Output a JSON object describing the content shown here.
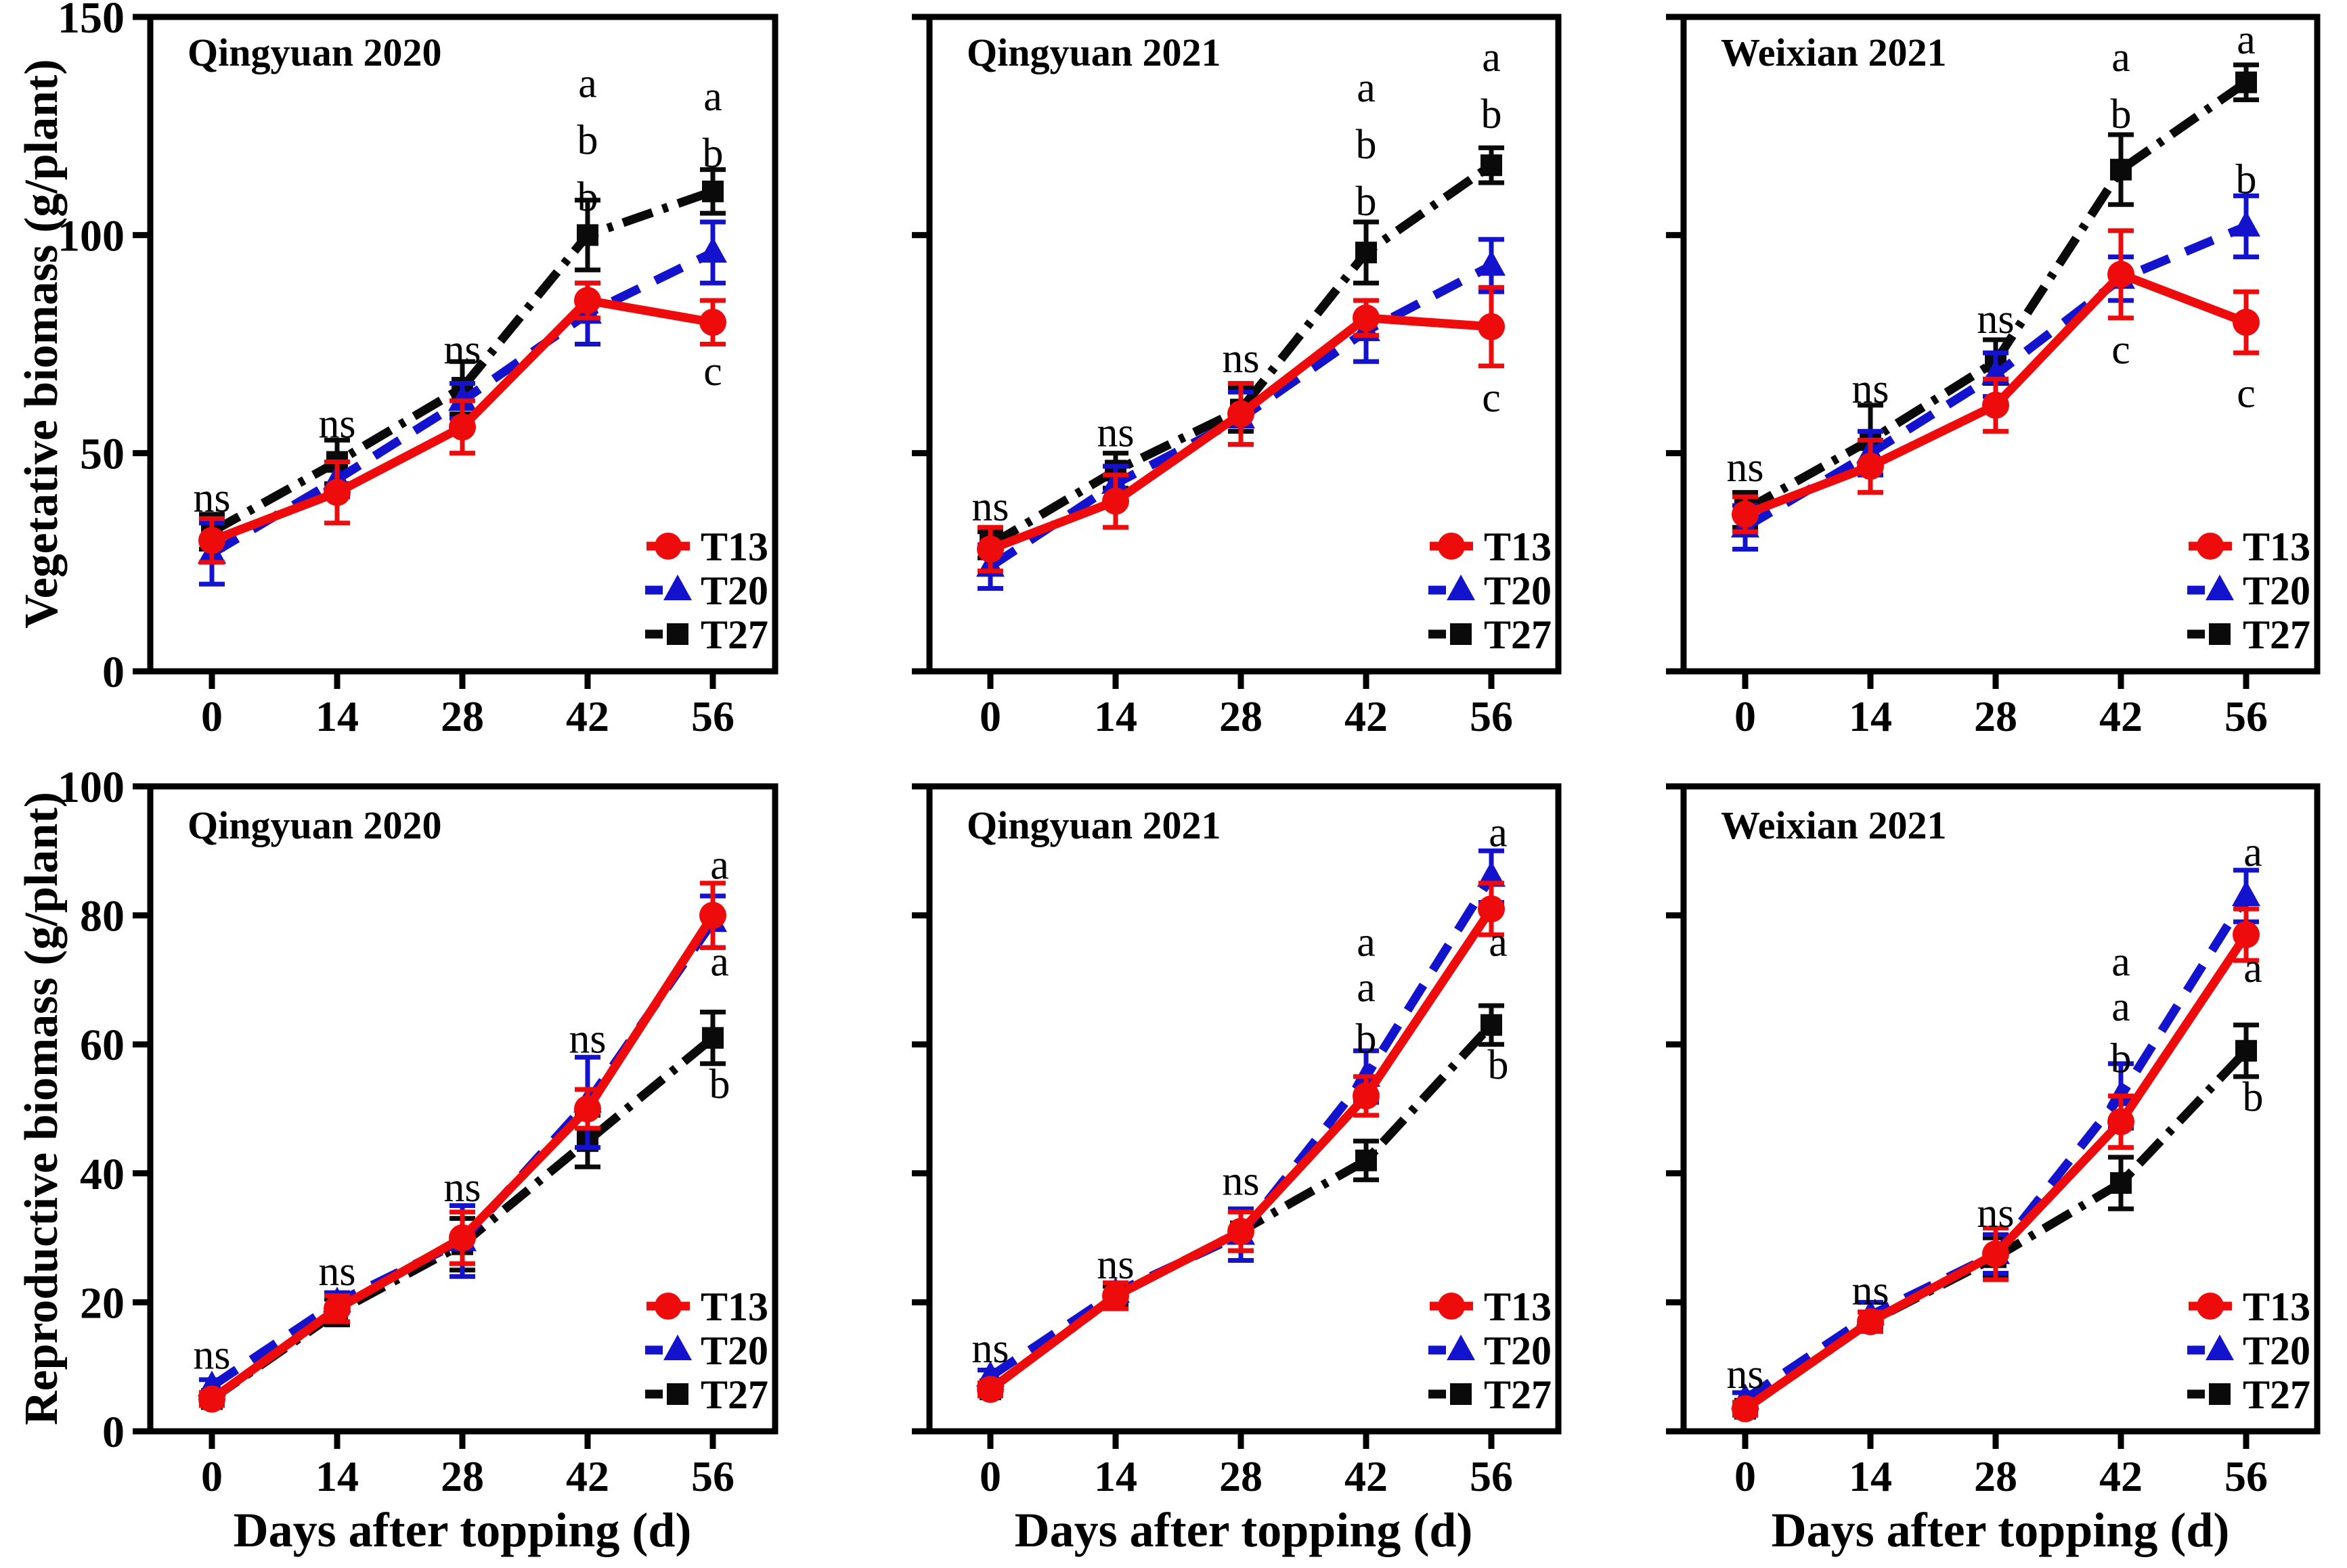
{
  "figure": {
    "xlabel": "Days after topping (d)",
    "x_values": [
      0,
      14,
      28,
      42,
      56
    ],
    "x_tick_labels": [
      "0",
      "14",
      "28",
      "42",
      "56"
    ],
    "series_colors": {
      "T13": "#ee0b0b",
      "T20": "#1313cd",
      "T27": "#0a0a0a"
    },
    "series_markers": {
      "T13": "circle",
      "T20": "triangle",
      "T27": "square"
    },
    "series_linestyles": {
      "T13": "solid",
      "T20": "dashed",
      "T27": "dashdot"
    },
    "legend_labels": [
      "T13",
      "T20",
      "T27"
    ],
    "legend_position": "lower-right"
  },
  "chart_data": [
    {
      "type": "line",
      "title": "Qingyuan 2020",
      "ylabel": "Vegetative biomass (g/plant)",
      "ylim": [
        0,
        150
      ],
      "yticks": [
        0,
        50,
        100,
        150
      ],
      "x": [
        0,
        14,
        28,
        42,
        56
      ],
      "series": [
        {
          "name": "T13",
          "values": [
            30,
            41,
            56,
            85,
            80
          ],
          "errors": [
            5,
            7,
            6,
            4,
            5
          ]
        },
        {
          "name": "T20",
          "values": [
            27,
            44,
            62,
            82,
            96
          ],
          "errors": [
            7,
            4,
            4,
            7,
            7
          ]
        },
        {
          "name": "T27",
          "values": [
            32,
            48,
            65,
            100,
            110
          ],
          "errors": [
            4,
            5,
            6,
            8,
            5
          ]
        }
      ],
      "annotations": [
        {
          "xi": 0,
          "y": 40,
          "text": "ns"
        },
        {
          "xi": 1,
          "y": 57,
          "text": "ns"
        },
        {
          "xi": 2,
          "y": 74,
          "text": "ns"
        },
        {
          "xi": 3,
          "y": 135,
          "text": "a"
        },
        {
          "xi": 3,
          "y": 122,
          "text": "b"
        },
        {
          "xi": 3,
          "y": 109,
          "text": "b"
        },
        {
          "xi": 4,
          "y": 132,
          "text": "a"
        },
        {
          "xi": 4,
          "y": 119,
          "text": "b"
        },
        {
          "xi": 4,
          "y": 69,
          "text": "c"
        }
      ]
    },
    {
      "type": "line",
      "title": "Qingyuan 2021",
      "ylabel": "Vegetative biomass (g/plant)",
      "ylim": [
        0,
        150
      ],
      "yticks": [
        0,
        50,
        100,
        150
      ],
      "x": [
        0,
        14,
        28,
        42,
        56
      ],
      "series": [
        {
          "name": "T13",
          "values": [
            28,
            39,
            59,
            81,
            79
          ],
          "errors": [
            5,
            6,
            7,
            4,
            9
          ]
        },
        {
          "name": "T20",
          "values": [
            24,
            43,
            58,
            78,
            93
          ],
          "errors": [
            5,
            4,
            6,
            7,
            6
          ]
        },
        {
          "name": "T27",
          "values": [
            29,
            46,
            60,
            96,
            116
          ],
          "errors": [
            3,
            4,
            5,
            7,
            4
          ]
        }
      ],
      "annotations": [
        {
          "xi": 0,
          "y": 38,
          "text": "ns"
        },
        {
          "xi": 1,
          "y": 55,
          "text": "ns"
        },
        {
          "xi": 2,
          "y": 72,
          "text": "ns"
        },
        {
          "xi": 3,
          "y": 134,
          "text": "a"
        },
        {
          "xi": 3,
          "y": 121,
          "text": "b"
        },
        {
          "xi": 3,
          "y": 108,
          "text": "b"
        },
        {
          "xi": 4,
          "y": 141,
          "text": "a"
        },
        {
          "xi": 4,
          "y": 128,
          "text": "b"
        },
        {
          "xi": 4,
          "y": 63,
          "text": "c"
        }
      ]
    },
    {
      "type": "line",
      "title": "Weixian 2021",
      "ylabel": "Vegetative biomass (g/plant)",
      "ylim": [
        0,
        150
      ],
      "yticks": [
        0,
        50,
        100,
        150
      ],
      "x": [
        0,
        14,
        28,
        42,
        56
      ],
      "series": [
        {
          "name": "T13",
          "values": [
            36,
            47,
            61,
            91,
            80
          ],
          "errors": [
            4,
            6,
            6,
            10,
            7
          ]
        },
        {
          "name": "T20",
          "values": [
            33,
            50,
            68,
            90,
            102
          ],
          "errors": [
            5,
            5,
            5,
            5,
            7
          ]
        },
        {
          "name": "T27",
          "values": [
            37,
            53,
            71,
            115,
            135
          ],
          "errors": [
            4,
            8,
            5,
            8,
            4
          ]
        }
      ],
      "annotations": [
        {
          "xi": 0,
          "y": 47,
          "text": "ns"
        },
        {
          "xi": 1,
          "y": 65,
          "text": "ns"
        },
        {
          "xi": 2,
          "y": 81,
          "text": "ns"
        },
        {
          "xi": 3,
          "y": 141,
          "text": "a"
        },
        {
          "xi": 3,
          "y": 128,
          "text": "b"
        },
        {
          "xi": 3,
          "y": 74,
          "text": "c"
        },
        {
          "xi": 4,
          "y": 145,
          "text": "a"
        },
        {
          "xi": 4,
          "y": 113,
          "text": "b"
        },
        {
          "xi": 4,
          "y": 64,
          "text": "c"
        }
      ]
    },
    {
      "type": "line",
      "title": "Qingyuan 2020",
      "ylabel": "Reproductive biomass (g/plant)",
      "ylim": [
        0,
        100
      ],
      "yticks": [
        0,
        20,
        40,
        60,
        80,
        100
      ],
      "x": [
        0,
        14,
        28,
        42,
        56
      ],
      "series": [
        {
          "name": "T13",
          "values": [
            5,
            19,
            30,
            50,
            80
          ],
          "errors": [
            1,
            2,
            4,
            3,
            5
          ]
        },
        {
          "name": "T20",
          "values": [
            7,
            20,
            29.5,
            51,
            79
          ],
          "errors": [
            1,
            1.5,
            5.5,
            7,
            4
          ]
        },
        {
          "name": "T27",
          "values": [
            5,
            18.5,
            29,
            45,
            61
          ],
          "errors": [
            1,
            2,
            4,
            4,
            4
          ]
        }
      ],
      "annotations": [
        {
          "xi": 0,
          "y": 12,
          "text": "ns"
        },
        {
          "xi": 1,
          "y": 25,
          "text": "ns"
        },
        {
          "xi": 2,
          "y": 38,
          "text": "ns"
        },
        {
          "xi": 3,
          "y": 61,
          "text": "ns"
        },
        {
          "xi": 4,
          "y": 88,
          "text": "a",
          "dx": 10
        },
        {
          "xi": 4,
          "y": 73,
          "text": "a",
          "dx": 10
        },
        {
          "xi": 4,
          "y": 54,
          "text": "b",
          "dx": 10
        }
      ]
    },
    {
      "type": "line",
      "title": "Qingyuan 2021",
      "ylabel": "Reproductive biomass (g/plant)",
      "ylim": [
        0,
        100
      ],
      "yticks": [
        0,
        20,
        40,
        60,
        80,
        100
      ],
      "x": [
        0,
        14,
        28,
        42,
        56
      ],
      "series": [
        {
          "name": "T13",
          "values": [
            6.5,
            21,
            31,
            52,
            81
          ],
          "errors": [
            1,
            2,
            3,
            3,
            4
          ]
        },
        {
          "name": "T20",
          "values": [
            8.5,
            21.5,
            30.5,
            55,
            86
          ],
          "errors": [
            1,
            1.5,
            4,
            4,
            4
          ]
        },
        {
          "name": "T27",
          "values": [
            6.5,
            21,
            31,
            42,
            63
          ],
          "errors": [
            1,
            1.5,
            3,
            3,
            3
          ]
        }
      ],
      "annotations": [
        {
          "xi": 0,
          "y": 13,
          "text": "ns"
        },
        {
          "xi": 1,
          "y": 26,
          "text": "ns"
        },
        {
          "xi": 2,
          "y": 39,
          "text": "ns"
        },
        {
          "xi": 3,
          "y": 76,
          "text": "a"
        },
        {
          "xi": 3,
          "y": 69,
          "text": "a"
        },
        {
          "xi": 3,
          "y": 61,
          "text": "b"
        },
        {
          "xi": 4,
          "y": 93,
          "text": "a",
          "dx": 10
        },
        {
          "xi": 4,
          "y": 76,
          "text": "a",
          "dx": 10
        },
        {
          "xi": 4,
          "y": 57,
          "text": "b",
          "dx": 10
        }
      ]
    },
    {
      "type": "line",
      "title": "Weixian 2021",
      "ylabel": "Reproductive biomass (g/plant)",
      "ylim": [
        0,
        100
      ],
      "yticks": [
        0,
        20,
        40,
        60,
        80,
        100
      ],
      "x": [
        0,
        14,
        28,
        42,
        56
      ],
      "series": [
        {
          "name": "T13",
          "values": [
            3.5,
            17,
            27.5,
            48,
            77
          ],
          "errors": [
            1,
            1.5,
            4,
            4,
            4
          ]
        },
        {
          "name": "T20",
          "values": [
            5,
            18,
            27.5,
            52,
            83
          ],
          "errors": [
            1,
            2,
            3,
            5,
            4
          ]
        },
        {
          "name": "T27",
          "values": [
            3.5,
            17,
            27,
            38.5,
            59
          ],
          "errors": [
            1,
            1.5,
            3,
            4,
            4
          ]
        }
      ],
      "annotations": [
        {
          "xi": 0,
          "y": 9,
          "text": "ns"
        },
        {
          "xi": 1,
          "y": 22,
          "text": "ns"
        },
        {
          "xi": 2,
          "y": 34,
          "text": "ns"
        },
        {
          "xi": 3,
          "y": 73,
          "text": "a"
        },
        {
          "xi": 3,
          "y": 66,
          "text": "a"
        },
        {
          "xi": 3,
          "y": 58,
          "text": "b"
        },
        {
          "xi": 4,
          "y": 90,
          "text": "a",
          "dx": 10
        },
        {
          "xi": 4,
          "y": 72,
          "text": "a",
          "dx": 10
        },
        {
          "xi": 4,
          "y": 52,
          "text": "b",
          "dx": 10
        }
      ]
    }
  ]
}
